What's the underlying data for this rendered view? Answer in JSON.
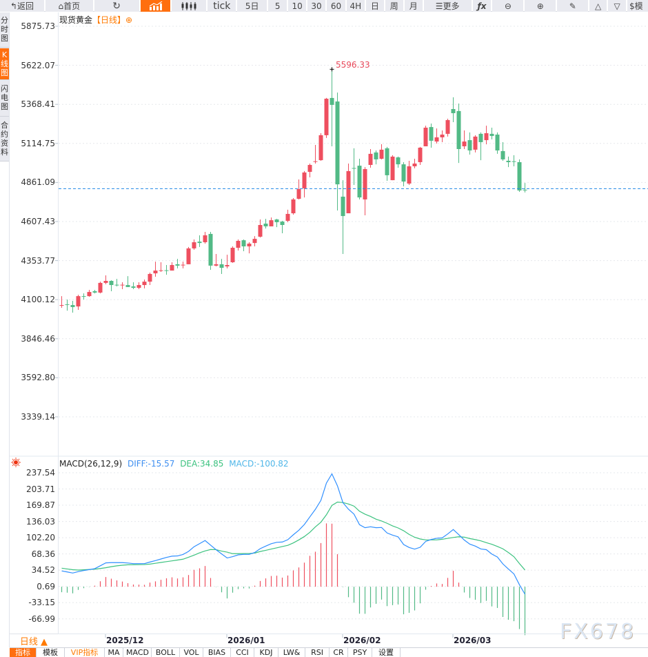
{
  "toolbar": {
    "back": "返回",
    "home": "首页",
    "tick": "tick",
    "five_day": "5日",
    "periods": [
      "5",
      "10",
      "30",
      "60",
      "4H",
      "日",
      "周",
      "月"
    ],
    "more": "更多",
    "fx": "ƒx",
    "model": "$模"
  },
  "sidebar": [
    "分时图",
    "K线图",
    "闪电图",
    "合约资料"
  ],
  "title": {
    "name": "现货黄金",
    "period": "【日线】",
    "add": "⊕"
  },
  "colors": {
    "up": "#ee4f5f",
    "down": "#52ba86",
    "diff": "#2f8fff",
    "dea": "#3cc27f",
    "accent": "#ff6f0f",
    "price_line": "#1e88e5"
  },
  "chart_data": {
    "type": "candlestick",
    "instrument": "现货黄金",
    "price_ticks": [
      "5875.73",
      "5622.07",
      "5368.41",
      "5114.75",
      "4861.09",
      "4607.43",
      "4353.77",
      "4100.12",
      "3846.46",
      "3592.80",
      "3339.14"
    ],
    "ylim": [
      3339.14,
      5875.73
    ],
    "high_label": "5596.33",
    "high_index": 49,
    "date_ticks": [
      {
        "index": 8,
        "label": "2025/12"
      },
      {
        "index": 30,
        "label": "2026/01"
      },
      {
        "index": 51,
        "label": "2026/02"
      },
      {
        "index": 71,
        "label": "2026/03"
      }
    ],
    "ohlc": [
      [
        4061,
        4123,
        4047,
        4065
      ],
      [
        4070,
        4101,
        4029,
        4068
      ],
      [
        4065,
        4092,
        4016,
        4052
      ],
      [
        4056,
        4132,
        4034,
        4123
      ],
      [
        4123,
        4141,
        4101,
        4121
      ],
      [
        4123,
        4164,
        4119,
        4150
      ],
      [
        4155,
        4164,
        4141,
        4146
      ],
      [
        4146,
        4217,
        4141,
        4209
      ],
      [
        4209,
        4258,
        4200,
        4222
      ],
      [
        4222,
        4226,
        4155,
        4195
      ],
      [
        4197,
        4235,
        4186,
        4193
      ],
      [
        4193,
        4213,
        4168,
        4197
      ],
      [
        4195,
        4253,
        4182,
        4182
      ],
      [
        4186,
        4213,
        4168,
        4177
      ],
      [
        4177,
        4213,
        4168,
        4195
      ],
      [
        4195,
        4231,
        4173,
        4217
      ],
      [
        4217,
        4276,
        4195,
        4267
      ],
      [
        4271,
        4347,
        4249,
        4289
      ],
      [
        4288,
        4343,
        4280,
        4291
      ],
      [
        4291,
        4325,
        4262,
        4287
      ],
      [
        4289,
        4343,
        4289,
        4325
      ],
      [
        4330,
        4365,
        4303,
        4321
      ],
      [
        4323,
        4347,
        4303,
        4327
      ],
      [
        4330,
        4442,
        4330,
        4433
      ],
      [
        4433,
        4491,
        4424,
        4473
      ],
      [
        4477,
        4518,
        4442,
        4468
      ],
      [
        4473,
        4540,
        4464,
        4518
      ],
      [
        4527,
        4540,
        4294,
        4321
      ],
      [
        4321,
        4397,
        4316,
        4330
      ],
      [
        4330,
        4365,
        4267,
        4307
      ],
      [
        4316,
        4392,
        4303,
        4325
      ],
      [
        4343,
        4446,
        4339,
        4437
      ],
      [
        4437,
        4491,
        4419,
        4482
      ],
      [
        4486,
        4491,
        4415,
        4446
      ],
      [
        4446,
        4473,
        4401,
        4464
      ],
      [
        4468,
        4513,
        4446,
        4495
      ],
      [
        4509,
        4621,
        4504,
        4585
      ],
      [
        4594,
        4625,
        4562,
        4576
      ],
      [
        4576,
        4634,
        4576,
        4616
      ],
      [
        4621,
        4625,
        4571,
        4603
      ],
      [
        4607,
        4612,
        4531,
        4585
      ],
      [
        4612,
        4684,
        4603,
        4657
      ],
      [
        4661,
        4760,
        4652,
        4751
      ],
      [
        4755,
        4881,
        4751,
        4818
      ],
      [
        4823,
        4935,
        4764,
        4926
      ],
      [
        4930,
        4984,
        4894,
        4975
      ],
      [
        4995,
        5105,
        4984,
        4999
      ],
      [
        5006,
        5181,
        5002,
        5168
      ],
      [
        5168,
        5410,
        5150,
        5405
      ],
      [
        5410,
        5596.33,
        5096,
        5365
      ],
      [
        5387,
        5445,
        4679,
        4849
      ],
      [
        4769,
        4876,
        4397,
        4643
      ],
      [
        4661,
        4984,
        4661,
        4935
      ],
      [
        4955,
        5083,
        4845,
        4951
      ],
      [
        4970,
        5015,
        4751,
        4764
      ],
      [
        4751,
        4961,
        4648,
        4948
      ],
      [
        4975,
        5078,
        4957,
        5047
      ],
      [
        5056,
        5069,
        4979,
        5011
      ],
      [
        5015,
        5110,
        5011,
        5074
      ],
      [
        5083,
        5092,
        4872,
        4908
      ],
      [
        4876,
        5038,
        4876,
        5029
      ],
      [
        5024,
        5029,
        4957,
        4979
      ],
      [
        4979,
        4993,
        4836,
        4867
      ],
      [
        4854,
        5002,
        4845,
        4966
      ],
      [
        4966,
        5015,
        4953,
        4984
      ],
      [
        4993,
        5092,
        4975,
        5087
      ],
      [
        5096,
        5230,
        5096,
        5217
      ],
      [
        5221,
        5244,
        5087,
        5132
      ],
      [
        5127,
        5212,
        5114,
        5154
      ],
      [
        5154,
        5199,
        5123,
        5172
      ],
      [
        5177,
        5275,
        5159,
        5266
      ],
      [
        5338,
        5414,
        5253,
        5311
      ],
      [
        5325,
        5374,
        4988,
        5078
      ],
      [
        5096,
        5199,
        5078,
        5127
      ],
      [
        5136,
        5186,
        5042,
        5069
      ],
      [
        5074,
        5168,
        5056,
        5159
      ],
      [
        5177,
        5186,
        5006,
        5123
      ],
      [
        5136,
        5230,
        5109,
        5181
      ],
      [
        5177,
        5217,
        5141,
        5163
      ],
      [
        5172,
        5186,
        5047,
        5069
      ],
      [
        5065,
        5123,
        5002,
        5011
      ],
      [
        5002,
        5029,
        4961,
        4993
      ],
      [
        4999,
        5038,
        4966,
        4995
      ],
      [
        4993,
        5011,
        4800,
        4809
      ],
      [
        4814,
        4858,
        4796,
        4812
      ]
    ],
    "macd": {
      "label": "MACD(26,12,9)",
      "diff_label": "DIFF:-15.57",
      "dea_label": "DEA:34.85",
      "macd_label": "MACD:-100.82",
      "ticks": [
        "237.54",
        "203.71",
        "169.87",
        "136.03",
        "102.20",
        "68.36",
        "34.52",
        "0.69",
        "-33.15",
        "-66.99"
      ],
      "ylim": [
        -100.82,
        237.54
      ],
      "diff": [
        32.9,
        30.8,
        28.6,
        31.5,
        33.8,
        35.7,
        37.7,
        43.7,
        49.7,
        50.2,
        50.2,
        50.2,
        49.4,
        48.2,
        48.2,
        48.2,
        51.5,
        54.5,
        57.8,
        61.1,
        63.7,
        64.2,
        67.2,
        73.6,
        83.4,
        89.8,
        96.2,
        86.6,
        77.0,
        68.4,
        59.9,
        62.7,
        66.4,
        67.4,
        67.4,
        71.3,
        79.4,
        84.6,
        89.7,
        92.6,
        93.2,
        98.0,
        108.3,
        117.7,
        129.7,
        145.6,
        161.3,
        180.0,
        216.0,
        235.2,
        210.3,
        175.0,
        161.5,
        151.3,
        129.2,
        123.0,
        124.9,
        123.0,
        123.5,
        112.0,
        107.5,
        104.0,
        88.0,
        81.8,
        78.4,
        82.2,
        94.5,
        98.4,
        101.0,
        101.8,
        110.0,
        119.2,
        108.5,
        97.3,
        88.7,
        84.6,
        78.7,
        77.2,
        68.0,
        61.9,
        47.5,
        36.9,
        26.7,
        4.1,
        -15.57
      ],
      "dea": [
        38.6,
        37.0,
        35.5,
        34.8,
        35.3,
        36.0,
        36.6,
        38.0,
        39.6,
        41.8,
        43.6,
        44.8,
        45.7,
        45.9,
        46.0,
        46.2,
        47.2,
        48.9,
        50.6,
        52.3,
        53.9,
        55.6,
        57.4,
        61.4,
        65.8,
        70.6,
        74.6,
        77.5,
        77.3,
        74.2,
        72.1,
        68.9,
        68.9,
        69.1,
        69.2,
        70.2,
        73.4,
        75.9,
        78.5,
        81.1,
        83.7,
        86.3,
        91.3,
        97.6,
        104.6,
        113.4,
        124.8,
        134.5,
        150.0,
        169.5,
        176.4,
        175.4,
        172.4,
        168.0,
        157.3,
        151.2,
        146.5,
        140.8,
        136.9,
        132.2,
        126.7,
        122.5,
        116.7,
        109.0,
        103.1,
        99.5,
        97.6,
        97.6,
        97.6,
        98.9,
        100.8,
        102.6,
        104.2,
        103.3,
        100.4,
        98.2,
        95.6,
        91.9,
        88.5,
        84.0,
        79.0,
        71.3,
        62.6,
        48.2,
        34.85
      ]
    }
  },
  "period_selector": "日线 ▲",
  "bottom_tabs": [
    "指标",
    "模板",
    "VIP指标",
    "MA",
    "MACD",
    "BOLL",
    "VOL",
    "BIAS",
    "CCI",
    "KDJ",
    "LW&",
    "RSI",
    "CR",
    "PSY",
    "设置"
  ],
  "watermark": "FX678"
}
